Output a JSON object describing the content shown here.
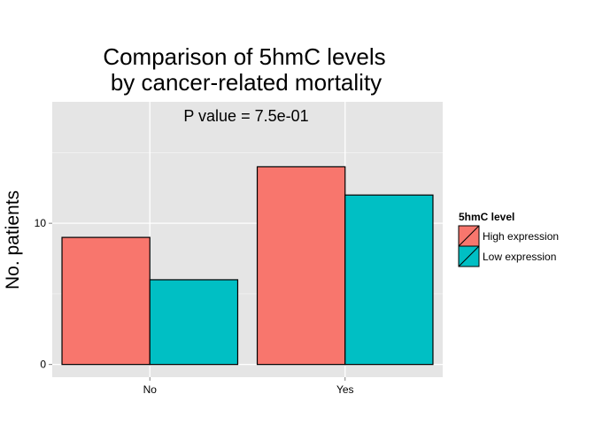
{
  "chart_data": {
    "type": "bar",
    "title_line1": "Comparison of 5hmC levels",
    "title_line2": "by cancer-related mortality",
    "annotation": "P value = 7.5e-01",
    "xlabel": "",
    "ylabel": "No. patients",
    "categories": [
      "No",
      "Yes"
    ],
    "series": [
      {
        "name": "High expression",
        "values": [
          9,
          14
        ],
        "color": "#F8766D"
      },
      {
        "name": "Low expression",
        "values": [
          6,
          12
        ],
        "color": "#00BFC4"
      }
    ],
    "ylim": [
      -0.9,
      18.6
    ],
    "yticks": [
      0,
      10
    ],
    "ytick_labels": [
      "0",
      "10"
    ],
    "grid": true,
    "panel_background": "#E5E5E5",
    "legend": {
      "title": "5hmC level",
      "position": "right"
    }
  }
}
